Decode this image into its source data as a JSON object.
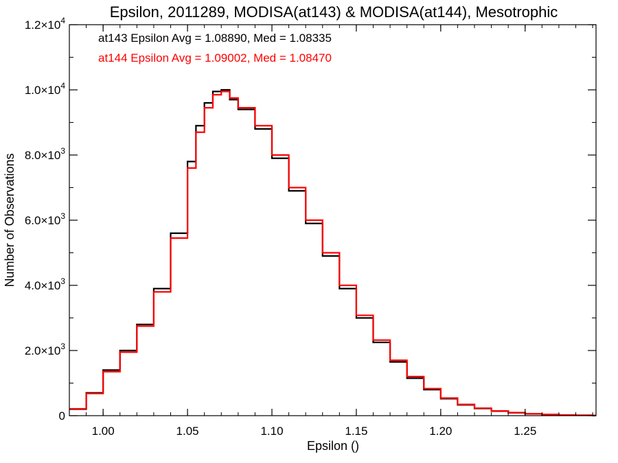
{
  "chart_data": {
    "type": "line",
    "title": "Epsilon, 2011289, MODISA(at143) & MODISA(at144), Mesotrophic",
    "xlabel": "Epsilon ()",
    "ylabel": "Number of Observations",
    "xlim": [
      0.98,
      1.292
    ],
    "ylim": [
      0,
      12000
    ],
    "x_ticks": [
      {
        "value": 1.0,
        "label": "1.00"
      },
      {
        "value": 1.05,
        "label": "1.05"
      },
      {
        "value": 1.1,
        "label": "1.10"
      },
      {
        "value": 1.15,
        "label": "1.15"
      },
      {
        "value": 1.2,
        "label": "1.20"
      },
      {
        "value": 1.25,
        "label": "1.25"
      }
    ],
    "y_ticks": [
      {
        "value": 0,
        "mantissa": "0",
        "exp": ""
      },
      {
        "value": 2000,
        "mantissa": "2.0×10",
        "exp": "3"
      },
      {
        "value": 4000,
        "mantissa": "4.0×10",
        "exp": "3"
      },
      {
        "value": 6000,
        "mantissa": "6.0×10",
        "exp": "3"
      },
      {
        "value": 8000,
        "mantissa": "8.0×10",
        "exp": "3"
      },
      {
        "value": 10000,
        "mantissa": "1.0×10",
        "exp": "4"
      },
      {
        "value": 12000,
        "mantissa": "1.2×10",
        "exp": "4"
      }
    ],
    "grid": false,
    "x": [
      0.98,
      0.99,
      1.0,
      1.01,
      1.02,
      1.03,
      1.04,
      1.05,
      1.055,
      1.06,
      1.065,
      1.07,
      1.075,
      1.08,
      1.09,
      1.1,
      1.11,
      1.12,
      1.13,
      1.14,
      1.15,
      1.16,
      1.17,
      1.18,
      1.19,
      1.2,
      1.21,
      1.22,
      1.23,
      1.24,
      1.25,
      1.26,
      1.27,
      1.28,
      1.29
    ],
    "series": [
      {
        "name": "at143",
        "color": "#000000",
        "values": [
          200,
          700,
          1400,
          2000,
          2800,
          3900,
          5600,
          7800,
          8900,
          9600,
          9950,
          10000,
          9700,
          9400,
          8800,
          7900,
          6900,
          5900,
          4900,
          3900,
          3000,
          2250,
          1650,
          1150,
          800,
          520,
          330,
          220,
          140,
          90,
          55,
          35,
          20,
          12,
          5
        ]
      },
      {
        "name": "at144",
        "color": "#ff0000",
        "values": [
          210,
          680,
          1350,
          1950,
          2750,
          3800,
          5450,
          7600,
          8700,
          9450,
          9850,
          9950,
          9750,
          9450,
          8900,
          8000,
          7000,
          6000,
          5000,
          4000,
          3080,
          2320,
          1700,
          1200,
          830,
          540,
          345,
          230,
          145,
          95,
          58,
          37,
          22,
          13,
          6
        ]
      }
    ],
    "legend": [
      {
        "text": "at143 Epsilon Avg = 1.08890, Med = 1.08335",
        "color": "#000000"
      },
      {
        "text": "at144 Epsilon Avg = 1.09002, Med = 1.08470",
        "color": "#ff0000"
      }
    ],
    "legend_placement": "top-left"
  }
}
